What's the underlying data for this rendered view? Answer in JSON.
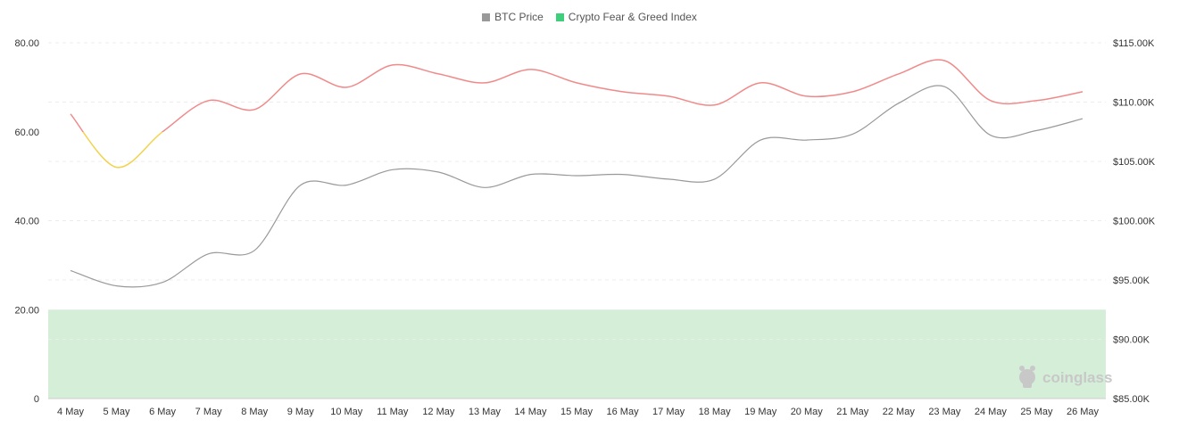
{
  "chart_data": {
    "type": "line",
    "legend": [
      {
        "name": "BTC Price",
        "color": "#999999"
      },
      {
        "name": "Crypto Fear & Greed Index",
        "color": "#3ecf7a"
      }
    ],
    "legend_position": "top-center",
    "categories": [
      "4 May",
      "5 May",
      "6 May",
      "7 May",
      "8 May",
      "9 May",
      "10 May",
      "11 May",
      "12 May",
      "13 May",
      "14 May",
      "15 May",
      "16 May",
      "17 May",
      "18 May",
      "19 May",
      "20 May",
      "21 May",
      "22 May",
      "23 May",
      "24 May",
      "25 May",
      "26 May"
    ],
    "series": [
      {
        "name": "BTC Price",
        "axis": "right",
        "color": "#999999",
        "values": [
          95800,
          94500,
          94800,
          97200,
          97500,
          103000,
          103000,
          104300,
          104100,
          102800,
          103900,
          103800,
          103900,
          103500,
          103500,
          106800,
          106800,
          107300,
          109900,
          111300,
          107200,
          107600,
          108600
        ]
      },
      {
        "name": "Crypto Fear & Greed Index",
        "axis": "left",
        "values": [
          64,
          52,
          60,
          67,
          65,
          73,
          70,
          75,
          73,
          71,
          74,
          71,
          69,
          68,
          66,
          71,
          68,
          69,
          73,
          76,
          67,
          67,
          69
        ],
        "color_bands": [
          {
            "min": 0,
            "max": 60,
            "color": "#f2d24c"
          },
          {
            "min": 60,
            "max": 100,
            "color": "#f08a8a"
          }
        ]
      }
    ],
    "left_axis": {
      "ticks": [
        "0",
        "20.00",
        "40.00",
        "60.00",
        "80.00"
      ],
      "range": [
        0,
        80
      ]
    },
    "right_axis": {
      "ticks": [
        "$85.00K",
        "$90.00K",
        "$95.00K",
        "$100.00K",
        "$105.00K",
        "$110.00K",
        "$115.00K"
      ],
      "range": [
        85000,
        115000
      ]
    },
    "shaded_zone": {
      "min": 0,
      "max": 20,
      "color": "#d5eed8"
    },
    "grid": true,
    "watermark": "coinglass"
  }
}
